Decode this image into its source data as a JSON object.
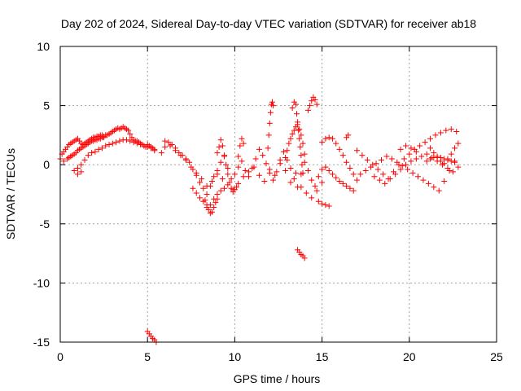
{
  "chart_data": {
    "type": "scatter",
    "title": "Day 202 of 2024, Sidereal Day-to-day VTEC variation (SDTVAR) for receiver ab18",
    "xlabel": "GPS time / hours",
    "ylabel": "SDTVAR / TECUs",
    "xlim": [
      0,
      25
    ],
    "ylim": [
      -15,
      10
    ],
    "xticks": [
      0,
      5,
      10,
      15,
      20,
      25
    ],
    "yticks": [
      -15,
      -10,
      -5,
      0,
      5,
      10
    ],
    "xtick_labels": [
      "0",
      "5",
      "10",
      "15",
      "20",
      "25"
    ],
    "ytick_labels": [
      "-15",
      "-10",
      "-5",
      "0",
      "5",
      "10"
    ],
    "grid": true,
    "marker": "+",
    "color": "#ff0000",
    "series": [
      {
        "name": "SDTVAR",
        "x": [
          0.0,
          0.1,
          0.2,
          0.3,
          0.4,
          0.5,
          0.6,
          0.7,
          0.8,
          0.9,
          1.0,
          1.1,
          1.2,
          1.3,
          1.4,
          1.5,
          1.6,
          1.7,
          1.8,
          1.9,
          2.0,
          2.1,
          2.2,
          2.3,
          2.4,
          2.5,
          2.6,
          2.7,
          2.8,
          2.9,
          3.0,
          3.1,
          3.2,
          3.3,
          3.4,
          3.5,
          3.6,
          3.7,
          3.8,
          3.9,
          4.0,
          4.1,
          4.2,
          4.3,
          4.4,
          4.5,
          4.6,
          4.7,
          4.8,
          4.9,
          5.0,
          5.1,
          5.2,
          5.3,
          5.4,
          0.5,
          0.6,
          0.7,
          0.8,
          0.9,
          1.0,
          1.1,
          1.2,
          1.3,
          1.4,
          1.5,
          1.6,
          1.7,
          1.8,
          1.9,
          2.0,
          2.1,
          2.2,
          2.3,
          2.4,
          2.5,
          0.2,
          0.4,
          0.6,
          0.8,
          1.0,
          1.2,
          1.0,
          1.2,
          1.4,
          1.6,
          1.8,
          2.0,
          2.2,
          2.4,
          2.6,
          2.8,
          3.0,
          3.2,
          3.4,
          3.6,
          3.8,
          4.0,
          4.2,
          4.4,
          4.6,
          4.8,
          5.0,
          5.2,
          5.4,
          5.0,
          5.1,
          5.2,
          5.3,
          5.4,
          5.5,
          5.8,
          6.0,
          6.2,
          6.4,
          6.6,
          6.8,
          7.0,
          7.2,
          7.4,
          7.6,
          7.8,
          8.0,
          8.2,
          8.4,
          8.6,
          8.8,
          9.0,
          9.2,
          9.4,
          9.6,
          9.8,
          10.0,
          10.2,
          10.4,
          10.6,
          10.8,
          11.0,
          11.2,
          11.4,
          11.6,
          11.8,
          12.0,
          12.2,
          12.4,
          12.6,
          12.8,
          13.0,
          13.2,
          13.4,
          13.6,
          13.8,
          14.0,
          14.2,
          14.4,
          14.6,
          14.8,
          15.0,
          6.0,
          6.3,
          6.6,
          6.9,
          7.2,
          7.5,
          7.8,
          8.1,
          8.4,
          8.7,
          9.0,
          9.3,
          9.6,
          9.9,
          10.2,
          10.5,
          10.8,
          11.1,
          11.4,
          11.7,
          12.0,
          12.3,
          12.6,
          12.9,
          13.2,
          13.5,
          13.8,
          14.1,
          14.4,
          14.7,
          15.0,
          7.6,
          7.8,
          8.0,
          8.2,
          8.4,
          8.6,
          8.8,
          9.0,
          9.2,
          9.4,
          8.3,
          8.4,
          8.5,
          8.6,
          8.7,
          8.8,
          8.9,
          9.0,
          9.0,
          9.1,
          9.2,
          9.3,
          9.4,
          9.5,
          9.6,
          9.7,
          9.8,
          9.9,
          10.0,
          10.1,
          10.2,
          10.3,
          10.4,
          10.5,
          11.9,
          11.95,
          12.0,
          12.05,
          12.1,
          12.15,
          12.2,
          12.9,
          13.0,
          13.1,
          13.2,
          13.3,
          13.4,
          13.5,
          13.6,
          13.7,
          13.8,
          13.9,
          14.0,
          13.3,
          13.4,
          13.5,
          13.55,
          13.6,
          13.65,
          13.7,
          13.75,
          13.8,
          13.85,
          13.9,
          14.2,
          14.3,
          14.4,
          14.5,
          14.6,
          14.7,
          13.6,
          13.7,
          13.8,
          13.9,
          14.0,
          14.8,
          15.0,
          15.2,
          15.4,
          15.0,
          15.2,
          15.4,
          15.6,
          15.8,
          16.0,
          16.2,
          16.4,
          16.6,
          16.8,
          17.0,
          15.2,
          15.4,
          15.6,
          15.8,
          16.0,
          16.2,
          16.4,
          16.6,
          16.8,
          16.4,
          16.5,
          17.0,
          17.3,
          17.6,
          17.9,
          18.2,
          18.5,
          18.8,
          19.1,
          19.4,
          19.7,
          20.0,
          20.3,
          20.6,
          20.9,
          21.2,
          21.5,
          21.8,
          22.1,
          22.4,
          22.7,
          17.2,
          17.5,
          17.8,
          18.1,
          18.4,
          18.7,
          19.0,
          19.3,
          19.6,
          19.9,
          20.2,
          20.5,
          20.8,
          21.1,
          21.4,
          21.7,
          22.0,
          22.3,
          22.6,
          18.0,
          18.3,
          18.6,
          18.9,
          19.2,
          19.5,
          19.8,
          20.1,
          20.4,
          20.7,
          21.0,
          21.3,
          21.6,
          21.9,
          22.2,
          22.5,
          22.8,
          19.5,
          19.8,
          20.1,
          20.4,
          21.0,
          21.2,
          21.4,
          21.6,
          21.8,
          22.0,
          22.2,
          22.4,
          22.6,
          21.2,
          21.4,
          21.6,
          21.8,
          22.0,
          22.2,
          22.4,
          22.6,
          22.8
        ],
        "y": [
          0.5,
          0.9,
          1.1,
          1.3,
          1.5,
          1.7,
          1.8,
          1.9,
          2.0,
          2.1,
          2.2,
          2.0,
          1.8,
          1.7,
          1.8,
          1.9,
          2.0,
          2.1,
          2.2,
          2.3,
          2.3,
          2.4,
          2.4,
          2.5,
          2.5,
          2.4,
          2.5,
          2.5,
          2.6,
          2.7,
          2.8,
          2.9,
          3.0,
          3.1,
          3.0,
          3.1,
          3.2,
          3.1,
          3.0,
          2.9,
          2.6,
          2.3,
          2.1,
          2.0,
          2.0,
          1.9,
          1.8,
          1.7,
          1.6,
          1.5,
          1.7,
          1.6,
          1.5,
          1.4,
          1.2,
          0.6,
          0.7,
          0.8,
          0.9,
          1.0,
          1.2,
          1.3,
          1.4,
          1.5,
          1.6,
          1.7,
          1.8,
          1.9,
          2.0,
          2.0,
          2.1,
          2.1,
          2.2,
          2.2,
          2.3,
          2.3,
          0.3,
          0.5,
          0.7,
          -0.5,
          -0.8,
          -0.6,
          -0.3,
          0.0,
          0.4,
          0.8,
          1.0,
          1.1,
          1.3,
          1.4,
          1.6,
          1.7,
          1.8,
          1.9,
          2.0,
          2.1,
          2.1,
          2.0,
          1.9,
          1.8,
          1.7,
          1.6,
          1.5,
          1.4,
          1.3,
          -14.1,
          -14.3,
          -14.5,
          -14.7,
          -14.8,
          -15.0,
          1.0,
          1.5,
          1.9,
          1.7,
          1.4,
          1.0,
          0.8,
          0.5,
          0.2,
          -0.4,
          -0.9,
          -1.5,
          -2.0,
          -2.5,
          -1.8,
          -1.0,
          -0.5,
          0.2,
          0.7,
          -0.3,
          -1.2,
          -0.8,
          -0.2,
          0.3,
          -0.5,
          -1.0,
          -0.3,
          0.5,
          1.3,
          0.8,
          0.1,
          -0.7,
          -1.3,
          -0.6,
          0.4,
          1.1,
          0.4,
          -0.3,
          -1.2,
          -1.9,
          -0.8,
          0.2,
          -0.5,
          -1.3,
          -1.8,
          -1.0,
          -0.4,
          2.0,
          1.6,
          1.2,
          0.8,
          0.4,
          -0.2,
          -0.7,
          -1.2,
          -1.8,
          -1.4,
          -0.8,
          -1.2,
          -1.7,
          -2.1,
          -1.6,
          -1.0,
          -0.6,
          -0.2,
          -0.9,
          -1.4,
          -0.4,
          -0.9,
          0.1,
          -0.5,
          -1.5,
          -0.7,
          -1.9,
          -2.4,
          -2.8,
          -2.2,
          -1.5,
          -2.0,
          -2.4,
          -2.8,
          -3.1,
          -3.6,
          -3.4,
          -2.9,
          -2.5,
          -2.2,
          -2.0,
          -3.0,
          -3.4,
          -3.8,
          -4.1,
          -4.0,
          -3.6,
          -3.2,
          -2.9,
          1.0,
          1.5,
          2.1,
          1.6,
          0.8,
          0.0,
          -0.8,
          -1.5,
          -2.0,
          -2.3,
          -2.1,
          -1.9,
          0.7,
          1.6,
          2.2,
          1.8,
          1.4,
          2.5,
          3.5,
          4.4,
          5.1,
          5.3,
          5.0,
          0.6,
          1.2,
          1.8,
          2.2,
          2.6,
          2.9,
          3.2,
          3.4,
          3.0,
          2.5,
          1.8,
          0.9,
          4.8,
          5.3,
          5.1,
          4.3,
          3.6,
          2.9,
          2.2,
          1.5,
          0.8,
          0.0,
          -0.7,
          4.6,
          5.0,
          5.4,
          5.7,
          5.5,
          5.1,
          -7.2,
          -7.4,
          -7.6,
          -7.7,
          -7.9,
          -3.1,
          -3.3,
          -3.4,
          -3.5,
          1.9,
          2.2,
          2.3,
          2.2,
          1.8,
          1.3,
          0.8,
          0.2,
          -0.3,
          -0.8,
          -1.3,
          -0.2,
          -0.5,
          -0.8,
          -1.1,
          -1.4,
          -1.6,
          -1.8,
          -2.0,
          -2.2,
          2.3,
          2.5,
          1.2,
          0.8,
          0.4,
          0.0,
          -0.4,
          -0.8,
          -1.2,
          -0.6,
          0.0,
          0.5,
          0.9,
          1.3,
          1.6,
          1.9,
          2.2,
          2.5,
          2.7,
          2.9,
          3.0,
          2.8,
          -0.8,
          -0.5,
          -0.2,
          0.1,
          0.4,
          0.7,
          0.5,
          0.2,
          -0.1,
          -0.4,
          -0.7,
          -1.0,
          -1.3,
          -1.6,
          -1.9,
          -2.2,
          -1.4,
          -0.5,
          0.3,
          -1.0,
          -1.3,
          -1.6,
          -1.2,
          -0.8,
          -0.4,
          0.0,
          0.3,
          0.5,
          0.7,
          0.9,
          0.6,
          0.3,
          0.0,
          -0.3,
          -0.6,
          -0.2,
          1.3,
          1.6,
          1.4,
          1.1,
          0.3,
          0.5,
          0.6,
          0.7,
          0.6,
          0.5,
          0.4,
          0.3,
          0.2,
          1.4,
          1.0,
          0.6,
          0.3,
          0.1,
          0.5,
          0.9,
          1.4,
          1.8
        ]
      }
    ]
  }
}
